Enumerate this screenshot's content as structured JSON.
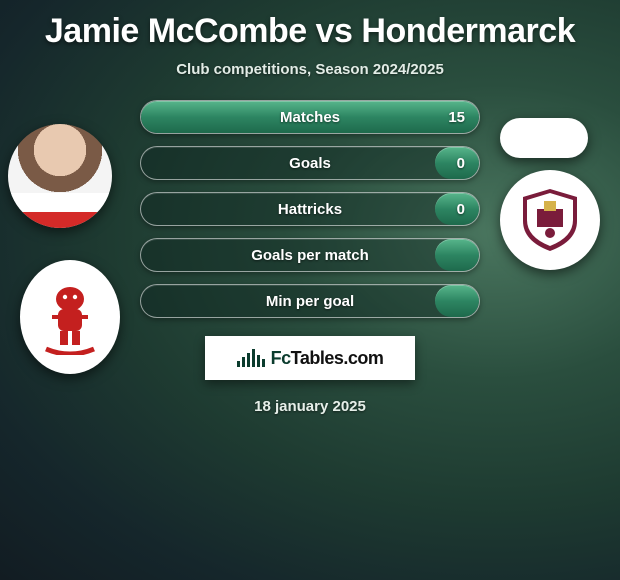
{
  "title": "Jamie McCombe vs Hondermarck",
  "subtitle": "Club competitions, Season 2024/2025",
  "date": "18 january 2025",
  "badge_text": {
    "prefix": "Fc",
    "rest": "Tables.com"
  },
  "colors": {
    "fill_gradient_top": "#57b58b",
    "fill_gradient_mid": "#2d8562",
    "fill_gradient_bot": "#1e6a4c",
    "pill_border": "rgba(255,255,255,0.55)",
    "text": "#ffffff"
  },
  "stats": [
    {
      "label": "Matches",
      "right_value": "15",
      "fill_pct": 100
    },
    {
      "label": "Goals",
      "right_value": "0",
      "fill_pct": 13
    },
    {
      "label": "Hattricks",
      "right_value": "0",
      "fill_pct": 13
    },
    {
      "label": "Goals per match",
      "right_value": "",
      "fill_pct": 13
    },
    {
      "label": "Min per goal",
      "right_value": "",
      "fill_pct": 13
    }
  ],
  "badge_bar_heights": [
    6,
    10,
    14,
    18,
    12,
    8
  ]
}
